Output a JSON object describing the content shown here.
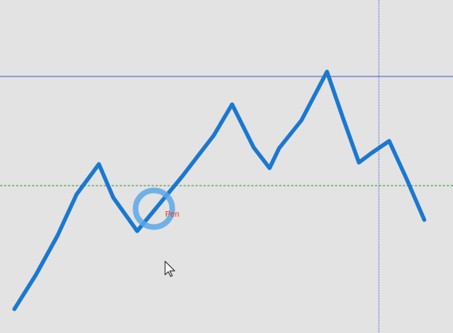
{
  "drawing": {
    "background_color": "#e3e3e3",
    "stroke_color": "#1a78d0",
    "crosshair_color": "#4a5bd6",
    "green_line_color": "#3a9a3a",
    "cursor_ring_color": "#5aa8e6",
    "pen_label_color": "#e8342a",
    "tool_icon": "pen-cursor-ring-icon",
    "pointer_icon": "mouse-pointer-icon"
  },
  "pen_cursor": {
    "label": "Pen"
  }
}
